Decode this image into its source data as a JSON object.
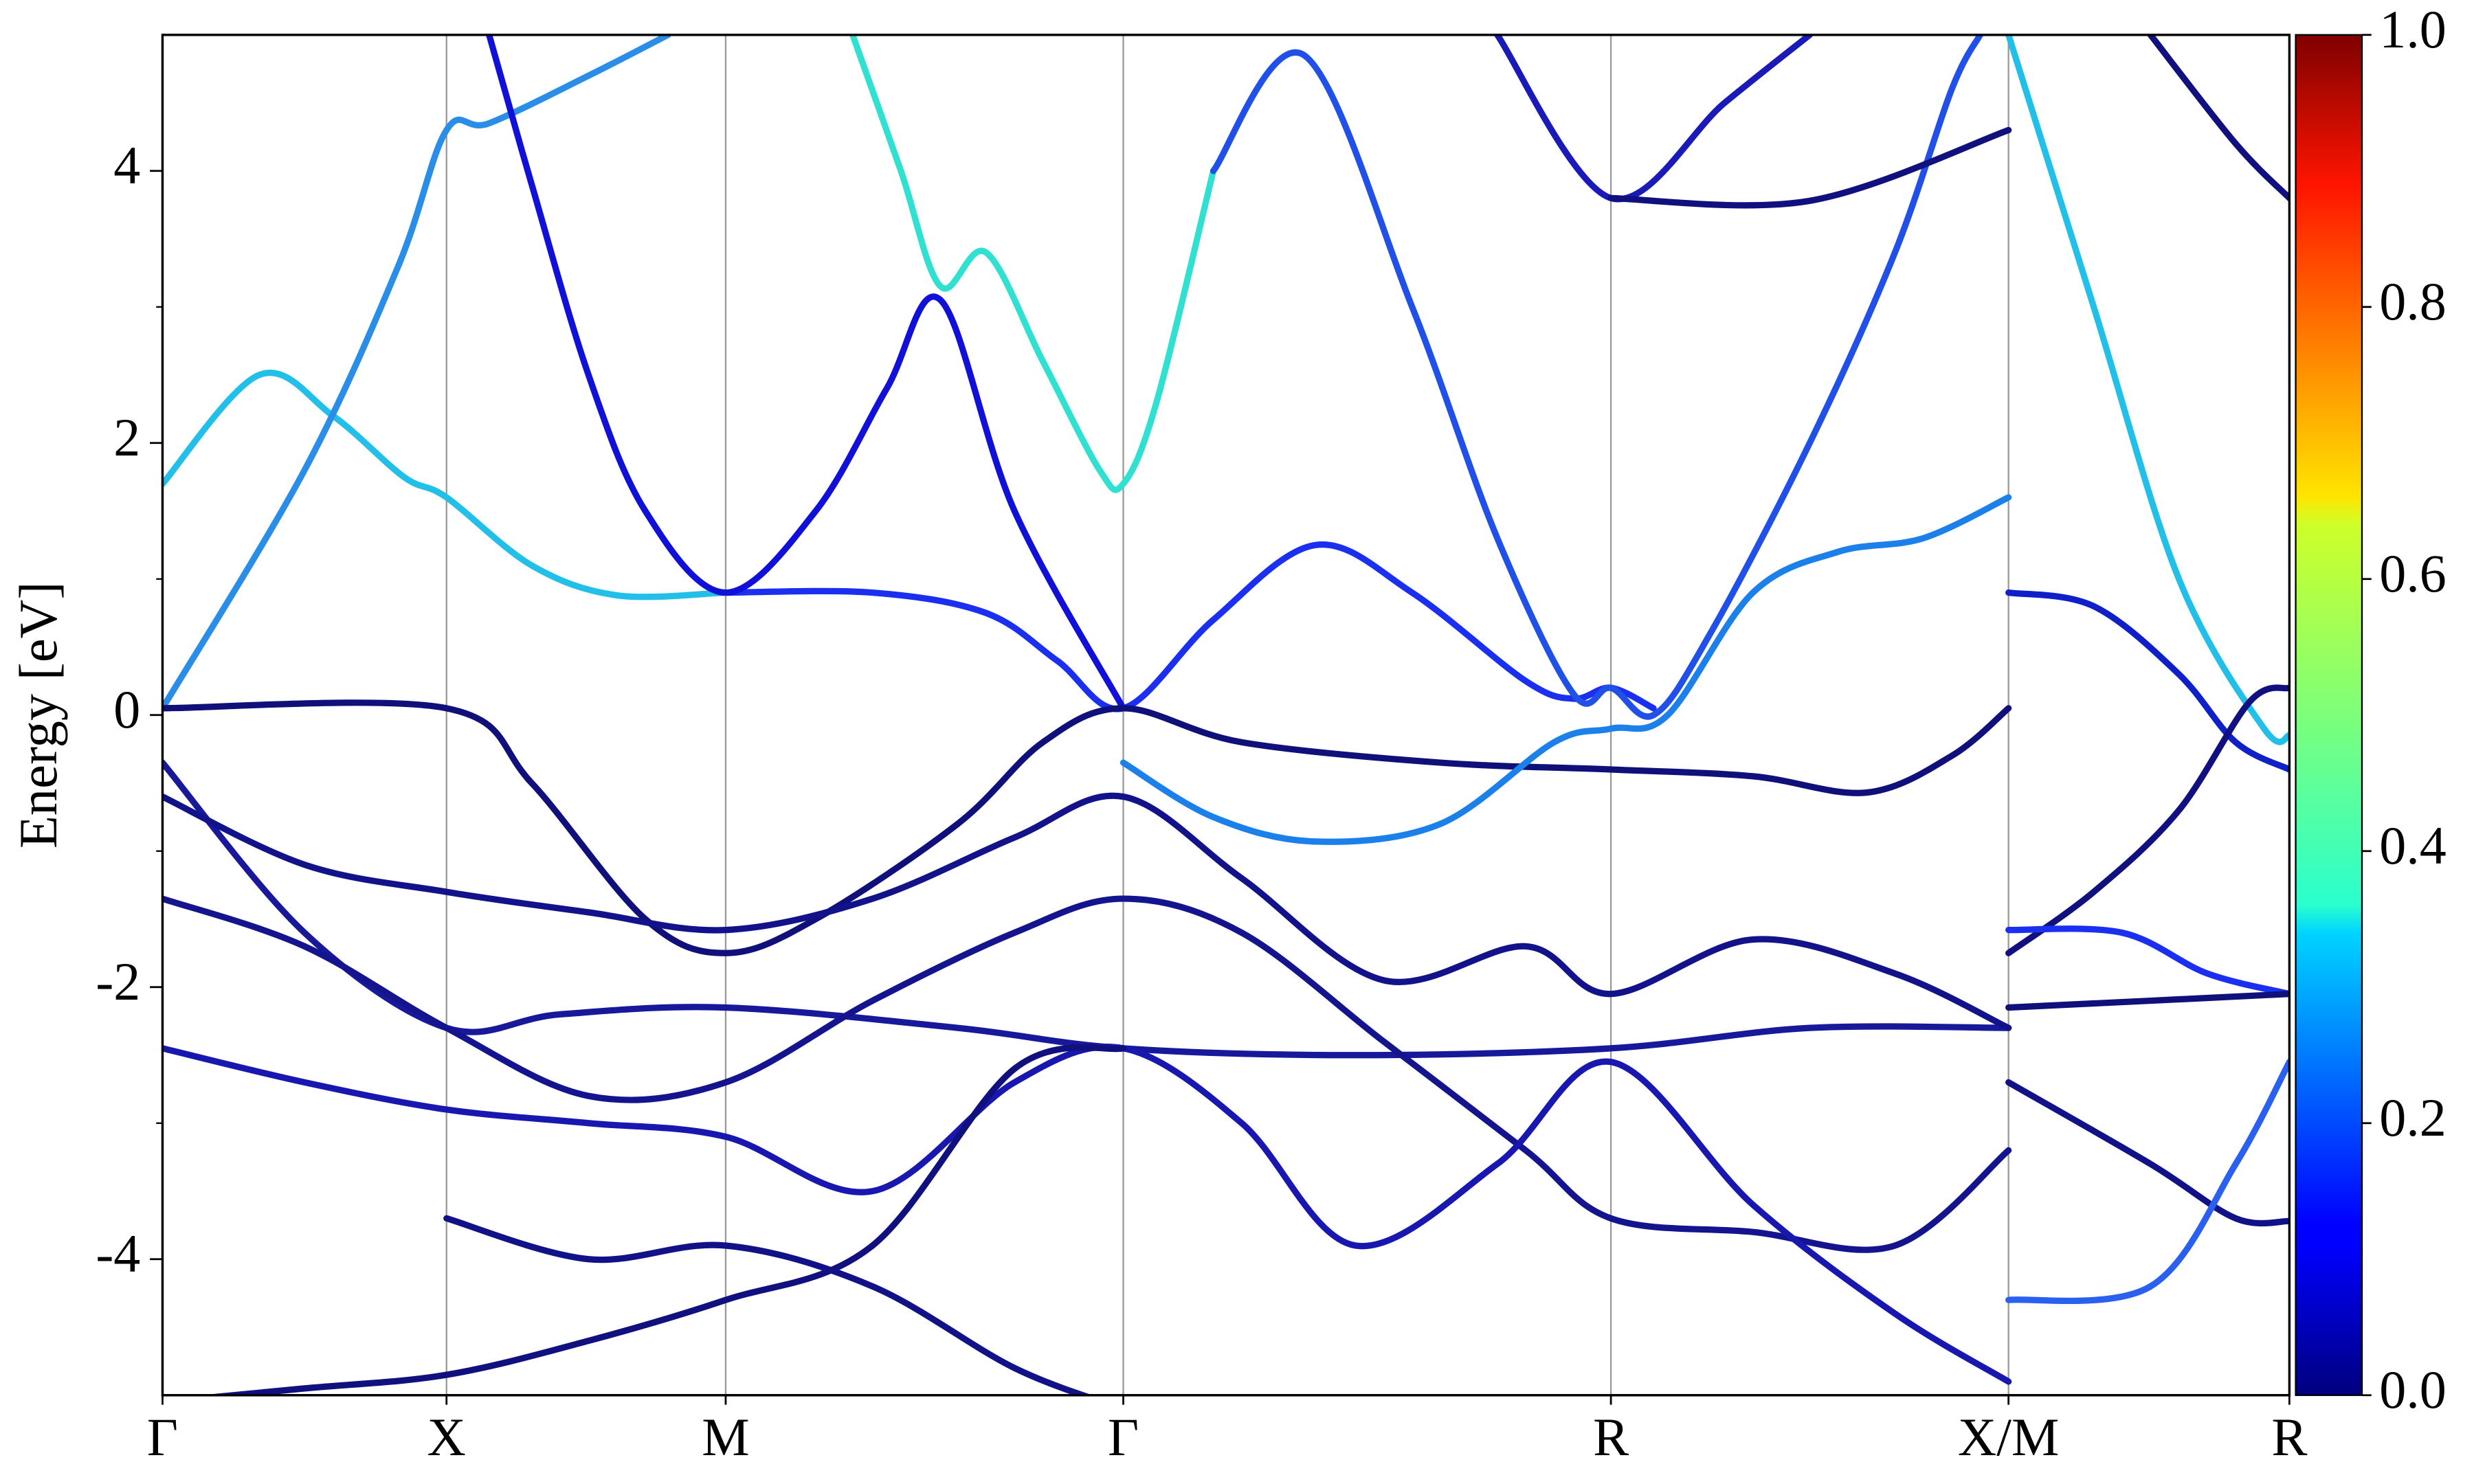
{
  "chart_data": {
    "type": "line",
    "ylabel": "Energy [eV]",
    "xlim": [
      0,
      7.489
    ],
    "xticks": [
      {
        "value": 0,
        "label": "Γ"
      },
      {
        "value": 1.0,
        "label": "X"
      },
      {
        "value": 1.983,
        "label": "M"
      },
      {
        "value": 3.383,
        "label": "Γ"
      },
      {
        "value": 5.1,
        "label": "R"
      },
      {
        "value": 6.5,
        "label": "X/M"
      },
      {
        "value": 7.489,
        "label": "R"
      }
    ],
    "ylim": [
      -5,
      5
    ],
    "yticks": [
      -4,
      -2,
      0,
      2,
      4
    ],
    "yminorticks": [
      -3,
      -1,
      1,
      3
    ],
    "grid": "x",
    "colorbar": {
      "colormap": "jet",
      "lim": [
        0,
        1
      ],
      "ticks": [
        {
          "value": 0,
          "label": "0.0"
        },
        {
          "value": 0.2,
          "label": "0.2"
        },
        {
          "value": 0.4,
          "label": "0.4"
        },
        {
          "value": 0.6,
          "label": "0.6"
        },
        {
          "value": 0.8,
          "label": "0.8"
        },
        {
          "value": 1.0,
          "label": "1.0"
        }
      ]
    },
    "series": [
      {
        "color": "#22c0e8",
        "x": [
          0,
          0.34,
          0.6,
          0.85,
          1.0,
          1.3,
          1.6,
          1.983
        ],
        "values": [
          1.7,
          2.5,
          2.2,
          1.75,
          1.6,
          1.1,
          0.88,
          0.9
        ]
      },
      {
        "color": "#1a2ff0",
        "x": [
          1.983,
          2.5,
          2.9,
          3.15,
          3.383,
          3.7,
          4.06,
          4.4,
          4.8,
          4.97,
          5.1,
          5.25
        ],
        "values": [
          0.9,
          0.9,
          0.75,
          0.4,
          0.05,
          0.7,
          1.25,
          0.9,
          0.25,
          0.12,
          0.2,
          0.05
        ]
      },
      {
        "color": "#2a8ee8",
        "x": [
          0,
          0.5,
          0.83,
          1.0,
          1.15,
          1.5,
          1.78
        ],
        "values": [
          0.05,
          1.8,
          3.3,
          4.3,
          4.35,
          4.7,
          5.0
        ]
      },
      {
        "color": "#1010d8",
        "x": [
          1.15,
          1.3,
          1.5,
          1.7,
          1.983,
          2.3,
          2.55,
          2.74,
          3.0,
          3.383
        ],
        "values": [
          5.0,
          3.9,
          2.5,
          1.5,
          0.9,
          1.5,
          2.4,
          3.05,
          1.5,
          0.05
        ]
      },
      {
        "color": "#30e0d0",
        "x": [
          2.43,
          2.6,
          2.74,
          2.9,
          3.1,
          3.3,
          3.383,
          3.5,
          3.7
        ],
        "values": [
          5.0,
          4.0,
          3.15,
          3.4,
          2.6,
          1.8,
          1.7,
          2.3,
          4.0
        ]
      },
      {
        "color": "#2050e8",
        "x": [
          3.7,
          4.02,
          4.4,
          4.7,
          4.97,
          5.1,
          5.25,
          5.45,
          5.8,
          6.1,
          6.3,
          6.4
        ],
        "values": [
          4.0,
          4.85,
          3.0,
          1.3,
          0.15,
          0.2,
          0.0,
          0.6,
          2.0,
          3.4,
          4.6,
          5.0
        ]
      },
      {
        "color": "#10107a",
        "x": [
          0,
          1.0,
          1.3,
          1.7,
          1.983,
          2.3,
          2.8,
          3.1,
          3.383,
          3.8,
          4.5,
          5.1,
          5.6,
          6.0,
          6.3,
          6.5
        ],
        "values": [
          0.05,
          0.05,
          -0.5,
          -1.5,
          -1.75,
          -1.5,
          -0.8,
          -0.2,
          0.05,
          -0.2,
          -0.35,
          -0.4,
          -0.45,
          -0.57,
          -0.3,
          0.05
        ]
      },
      {
        "color": "#18189a",
        "x": [
          0,
          0.5,
          1.0,
          1.4,
          1.983,
          2.8,
          3.383,
          4.2,
          5.1,
          5.8,
          6.5
        ],
        "values": [
          -0.35,
          -1.6,
          -2.3,
          -2.2,
          -2.15,
          -2.3,
          -2.45,
          -2.5,
          -2.45,
          -2.3,
          -2.3
        ]
      },
      {
        "color": "#12128a",
        "x": [
          0,
          0.5,
          1.0,
          1.5,
          1.983,
          2.5,
          3.0,
          3.383,
          3.8,
          4.3,
          4.8,
          5.1,
          5.6,
          6.1,
          6.5
        ],
        "values": [
          -0.6,
          -1.1,
          -1.3,
          -1.45,
          -1.58,
          -1.35,
          -0.9,
          -0.6,
          -1.2,
          -1.95,
          -1.7,
          -2.05,
          -1.65,
          -1.9,
          -2.3
        ]
      },
      {
        "color": "#1c80ea",
        "x": [
          3.383,
          3.7,
          4.06,
          4.5,
          4.9,
          5.1,
          5.3,
          5.6,
          5.9,
          6.2,
          6.5
        ],
        "values": [
          -0.35,
          -0.75,
          -0.93,
          -0.8,
          -0.2,
          -0.1,
          0.0,
          0.9,
          1.2,
          1.3,
          1.6
        ]
      },
      {
        "color": "#14148e",
        "x": [
          0,
          0.5,
          1.0,
          1.5,
          1.983,
          2.5,
          3.0,
          3.383,
          3.8,
          4.3,
          4.8,
          5.1,
          5.6,
          6.1,
          6.5
        ],
        "values": [
          -1.35,
          -1.7,
          -2.3,
          -2.8,
          -2.7,
          -2.1,
          -1.6,
          -1.35,
          -1.6,
          -2.4,
          -3.2,
          -3.7,
          -3.8,
          -3.9,
          -3.2
        ]
      },
      {
        "color": "#1818b0",
        "x": [
          0,
          0.5,
          1.0,
          1.5,
          1.983,
          2.5,
          3.0,
          3.383,
          3.8,
          4.2,
          4.7,
          5.1,
          5.6,
          6.1,
          6.5
        ],
        "values": [
          -2.45,
          -2.7,
          -2.9,
          -3.0,
          -3.1,
          -3.5,
          -2.7,
          -2.45,
          -3.0,
          -3.9,
          -3.3,
          -2.55,
          -3.6,
          -4.4,
          -4.9
        ]
      },
      {
        "color": "#10107e",
        "x": [
          0,
          0.5,
          1.0,
          1.5,
          1.983,
          2.5,
          3.0,
          3.383
        ],
        "values": [
          -5.05,
          -4.95,
          -4.85,
          -4.6,
          -4.3,
          -3.9,
          -2.6,
          -2.45
        ]
      },
      {
        "color": "#121288",
        "x": [
          1.0,
          1.5,
          1.983,
          2.5,
          3.0,
          3.383
        ],
        "values": [
          -3.7,
          -4.0,
          -3.9,
          -4.2,
          -4.8,
          -5.1
        ]
      },
      {
        "color": "#1a1ab8",
        "x": [
          4.7,
          5.1,
          5.5,
          5.8
        ],
        "values": [
          5.0,
          3.8,
          4.5,
          5.0
        ]
      },
      {
        "color": "#10107e",
        "x": [
          5.1,
          5.8,
          6.5
        ],
        "values": [
          3.8,
          3.78,
          4.3
        ]
      },
      {
        "color": "#22c0e8",
        "x": [
          6.5,
          6.8,
          7.1,
          7.4,
          7.489
        ],
        "values": [
          5.0,
          3.0,
          1.0,
          -0.1,
          -0.15
        ]
      },
      {
        "color": "#1020c8",
        "x": [
          6.5,
          6.8,
          7.1,
          7.3,
          7.489
        ],
        "values": [
          0.9,
          0.8,
          0.3,
          -0.2,
          -0.4
        ]
      },
      {
        "color": "#10107e",
        "x": [
          6.5,
          6.8,
          7.1,
          7.35,
          7.489
        ],
        "values": [
          -1.75,
          -1.3,
          -0.7,
          0.1,
          0.2
        ]
      },
      {
        "color": "#1a2ff0",
        "x": [
          6.5,
          6.9,
          7.2,
          7.489
        ],
        "values": [
          -1.58,
          -1.6,
          -1.9,
          -2.05
        ]
      },
      {
        "color": "#10107a",
        "x": [
          6.5,
          7.0,
          7.489
        ],
        "values": [
          -2.15,
          -2.1,
          -2.05
        ]
      },
      {
        "color": "#121288",
        "x": [
          6.5,
          7.0,
          7.3,
          7.489
        ],
        "values": [
          -2.7,
          -3.3,
          -3.7,
          -3.72
        ]
      },
      {
        "color": "#2a60f0",
        "x": [
          6.5,
          7.0,
          7.3,
          7.489
        ],
        "values": [
          -4.3,
          -4.2,
          -3.3,
          -2.55
        ]
      },
      {
        "color": "#10107e",
        "x": [
          7.0,
          7.3,
          7.489
        ],
        "values": [
          5.0,
          4.2,
          3.8
        ]
      }
    ]
  }
}
